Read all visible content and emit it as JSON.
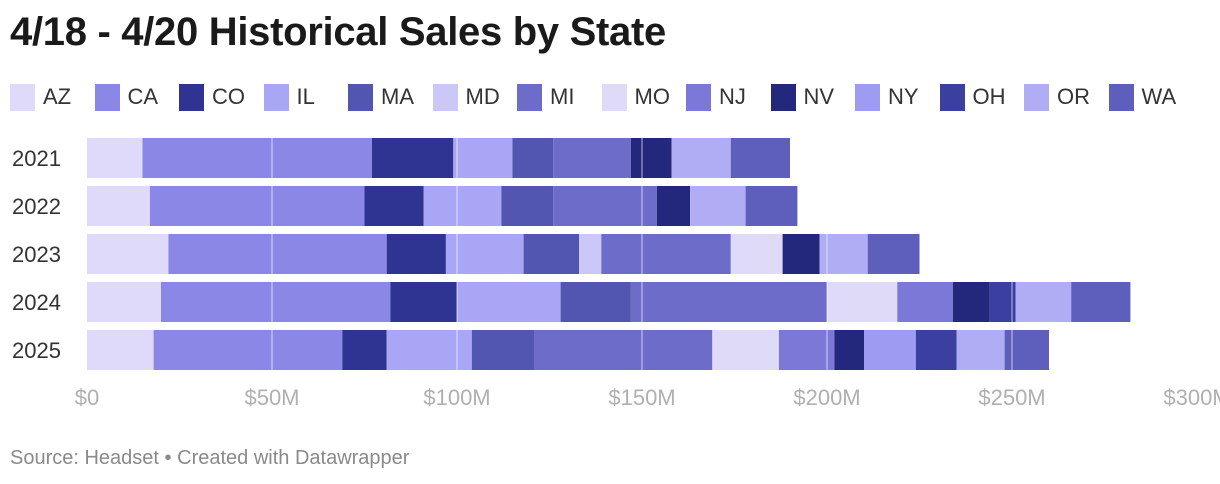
{
  "title": "4/18 - 4/20 Historical Sales by State",
  "footer": {
    "source": "Source: Headset",
    "separator": "•",
    "credit": "Created with Datawrapper"
  },
  "colors": {
    "AZ": "#e0dafa",
    "CA": "#8a87e6",
    "CO": "#2f3391",
    "IL": "#a9a7f5",
    "MA": "#5256b0",
    "MD": "#cbc8f7",
    "MI": "#6d6dc9",
    "MO": "#dedaf8",
    "NJ": "#7b78d8",
    "NV": "#23287c",
    "NY": "#9e9bf2",
    "OH": "#3b3f9f",
    "OR": "#b0adf5",
    "WA": "#5e5ebd"
  },
  "chart_data": {
    "type": "bar",
    "orientation": "horizontal",
    "stacked": true,
    "title": "4/18 - 4/20 Historical Sales by State",
    "categories": [
      "2021",
      "2022",
      "2023",
      "2024",
      "2025"
    ],
    "series": [
      {
        "name": "AZ",
        "values": [
          15,
          17,
          22,
          20,
          18
        ]
      },
      {
        "name": "CA",
        "values": [
          62,
          58,
          59,
          62,
          51
        ]
      },
      {
        "name": "CO",
        "values": [
          22,
          16,
          16,
          18,
          12
        ]
      },
      {
        "name": "IL",
        "values": [
          16,
          21,
          21,
          28,
          23
        ]
      },
      {
        "name": "MA",
        "values": [
          11,
          14,
          15,
          19,
          17
        ]
      },
      {
        "name": "MD",
        "values": [
          0,
          0,
          6,
          0,
          0
        ]
      },
      {
        "name": "MI",
        "values": [
          21,
          28,
          35,
          53,
          48
        ]
      },
      {
        "name": "MO",
        "values": [
          0,
          0,
          14,
          19,
          18
        ]
      },
      {
        "name": "NJ",
        "values": [
          0,
          0,
          0,
          15,
          15
        ]
      },
      {
        "name": "NV",
        "values": [
          11,
          9,
          10,
          10,
          8
        ]
      },
      {
        "name": "NY",
        "values": [
          0,
          0,
          0,
          0,
          14
        ]
      },
      {
        "name": "OH",
        "values": [
          0,
          0,
          0,
          7,
          11
        ]
      },
      {
        "name": "OR",
        "values": [
          16,
          15,
          13,
          15,
          13
        ]
      },
      {
        "name": "WA",
        "values": [
          16,
          14,
          14,
          16,
          12
        ]
      }
    ],
    "xlim": [
      0,
      303
    ],
    "xticks": [
      0,
      50,
      100,
      150,
      200,
      250,
      300
    ],
    "xtick_labels": [
      "$0",
      "$50M",
      "$100M",
      "$150M",
      "$200M",
      "$250M",
      "$300M"
    ],
    "grid": true,
    "legend_position": "top"
  }
}
